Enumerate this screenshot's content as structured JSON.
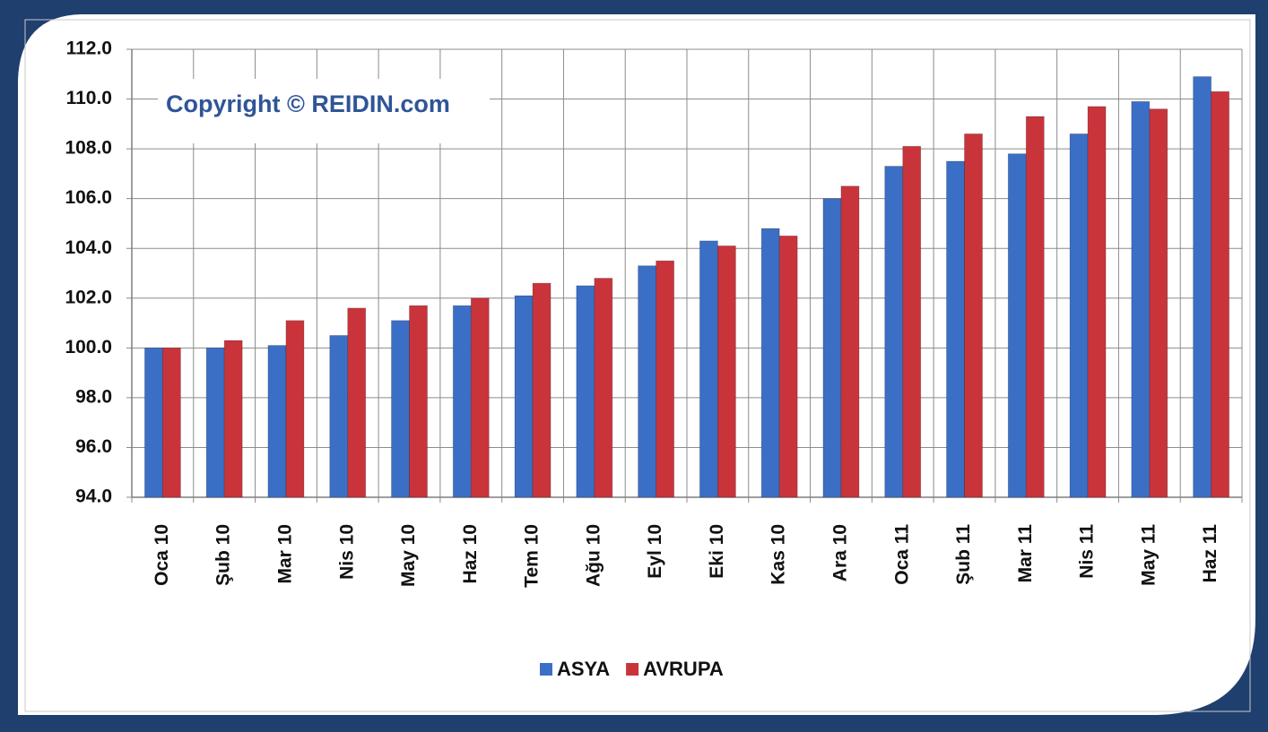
{
  "chart_data": {
    "type": "bar",
    "annotation": "Copyright © REIDIN.com",
    "categories": [
      "Oca 10",
      "Şub 10",
      "Mar 10",
      "Nis 10",
      "May 10",
      "Haz 10",
      "Tem 10",
      "Ağu 10",
      "Eyl 10",
      "Eki 10",
      "Kas 10",
      "Ara 10",
      "Oca 11",
      "Şub 11",
      "Mar 11",
      "Nis 11",
      "May 11",
      "Haz 11"
    ],
    "series": [
      {
        "name": "ASYA",
        "color": "#3b6fc6",
        "values": [
          100.0,
          100.0,
          100.1,
          100.5,
          101.1,
          101.7,
          102.1,
          102.5,
          103.3,
          104.3,
          104.8,
          106.0,
          107.3,
          107.5,
          107.8,
          108.6,
          109.9,
          110.9
        ]
      },
      {
        "name": "AVRUPA",
        "color": "#c9343b",
        "values": [
          100.0,
          100.3,
          101.1,
          101.6,
          101.7,
          102.0,
          102.6,
          102.8,
          103.5,
          104.1,
          104.5,
          106.5,
          108.1,
          108.6,
          109.3,
          109.7,
          109.6,
          110.3
        ]
      }
    ],
    "ylim": [
      94,
      112
    ],
    "yticks": [
      {
        "value": 94,
        "label": "94.0"
      },
      {
        "value": 96,
        "label": "96.0"
      },
      {
        "value": 98,
        "label": "98.0"
      },
      {
        "value": 100,
        "label": "100.0"
      },
      {
        "value": 102,
        "label": "102.0"
      },
      {
        "value": 104,
        "label": "104.0"
      },
      {
        "value": 106,
        "label": "106.0"
      },
      {
        "value": 108,
        "label": "108.0"
      },
      {
        "value": 110,
        "label": "110.0"
      },
      {
        "value": 112,
        "label": "112.0"
      }
    ],
    "grid": true,
    "legend": "bottom"
  }
}
